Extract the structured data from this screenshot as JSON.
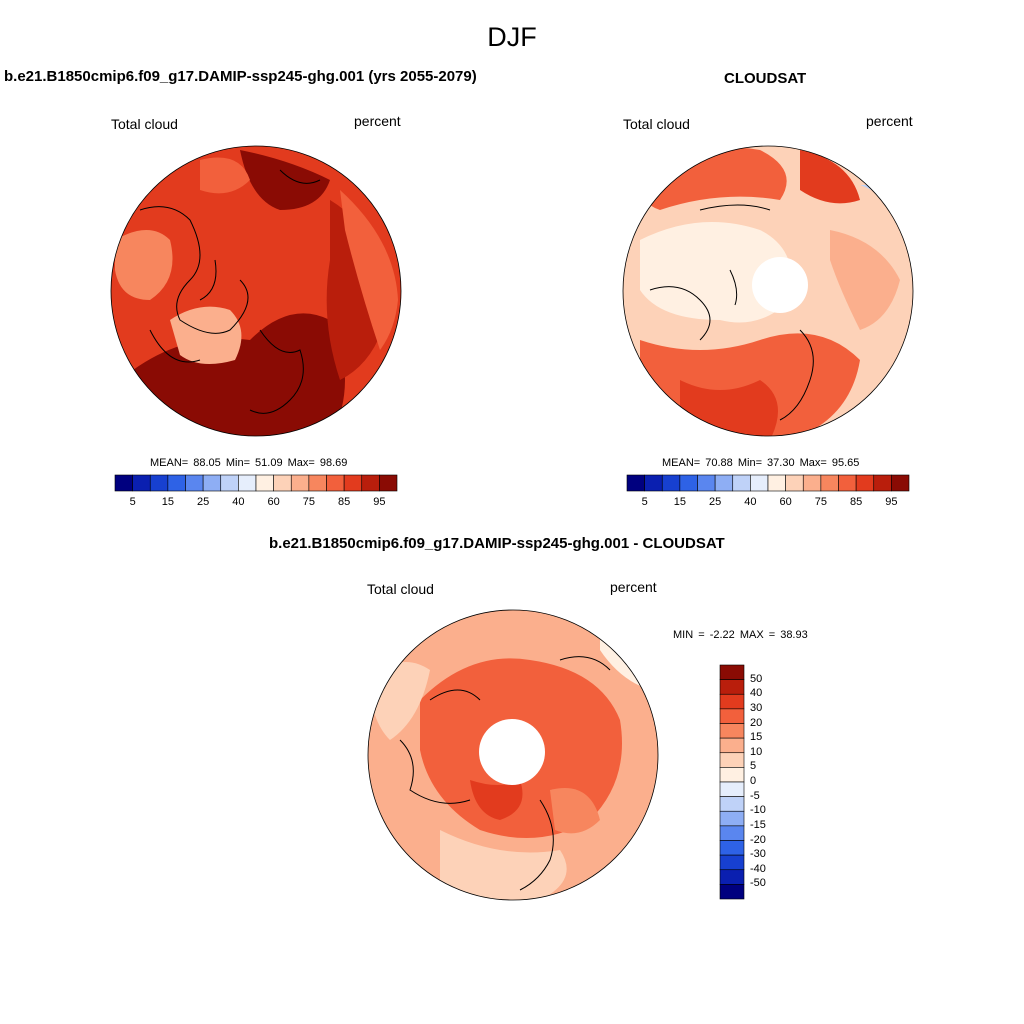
{
  "figure": {
    "season": "DJF"
  },
  "panels": {
    "model": {
      "title": "b.e21.B1850cmip6.f09_g17.DAMIP-ssp245-ghg.001 (yrs 2055-2079)",
      "left_label": "Total cloud",
      "right_label": "percent",
      "stats": "MEAN=  88.05  Min=  51.09  Max=  98.69"
    },
    "obs": {
      "title": "CLOUDSAT",
      "left_label": "Total cloud",
      "right_label": "percent",
      "stats": "MEAN=  70.88  Min=  37.30  Max=  95.65"
    },
    "diff": {
      "title": "b.e21.B1850cmip6.f09_g17.DAMIP-ssp245-ghg.001 - CLOUDSAT",
      "left_label": "Total cloud",
      "right_label": "percent",
      "stats": "MIN =  -2.22 MAX =  38.93"
    }
  },
  "colorbars": {
    "abs": {
      "colors": [
        "#00007f",
        "#0a1fb0",
        "#1740d0",
        "#2e62e6",
        "#5a86ef",
        "#8eaef4",
        "#bfd2f8",
        "#e6eefc",
        "#fff0e2",
        "#fdd2b8",
        "#fbaf8d",
        "#f7865e",
        "#f2603c",
        "#e23b1e",
        "#b91e0c",
        "#8a0b04"
      ],
      "tick_labels": [
        "5",
        "15",
        "25",
        "40",
        "60",
        "75",
        "85",
        "95"
      ]
    },
    "diff": {
      "colors": [
        "#00007f",
        "#0a1fb0",
        "#1740d0",
        "#2e62e6",
        "#5a86ef",
        "#8eaef4",
        "#bfd2f8",
        "#e6eefc",
        "#fff0e2",
        "#fdd2b8",
        "#fbaf8d",
        "#f7865e",
        "#f2603c",
        "#e23b1e",
        "#b91e0c",
        "#8a0b04"
      ],
      "tick_labels": [
        "50",
        "40",
        "30",
        "20",
        "15",
        "10",
        "5",
        "0",
        "-5",
        "-10",
        "-15",
        "-20",
        "-30",
        "-40",
        "-50"
      ]
    }
  },
  "maps": {
    "model": {
      "base_color": "#e23b1e",
      "shades": [
        "#f2603c",
        "#b91e0c",
        "#8a0b04",
        "#fbaf8d",
        "#f7865e"
      ]
    },
    "obs": {
      "base_color": "#fbaf8d",
      "shades": [
        "#fdd2b8",
        "#fff0e2",
        "#f7865e",
        "#f2603c",
        "#e23b1e",
        "#bfd2f8"
      ]
    },
    "diff": {
      "base_color": "#fbaf8d",
      "shades": [
        "#fdd2b8",
        "#fff0e2",
        "#f7865e",
        "#f2603c",
        "#e23b1e"
      ]
    }
  }
}
